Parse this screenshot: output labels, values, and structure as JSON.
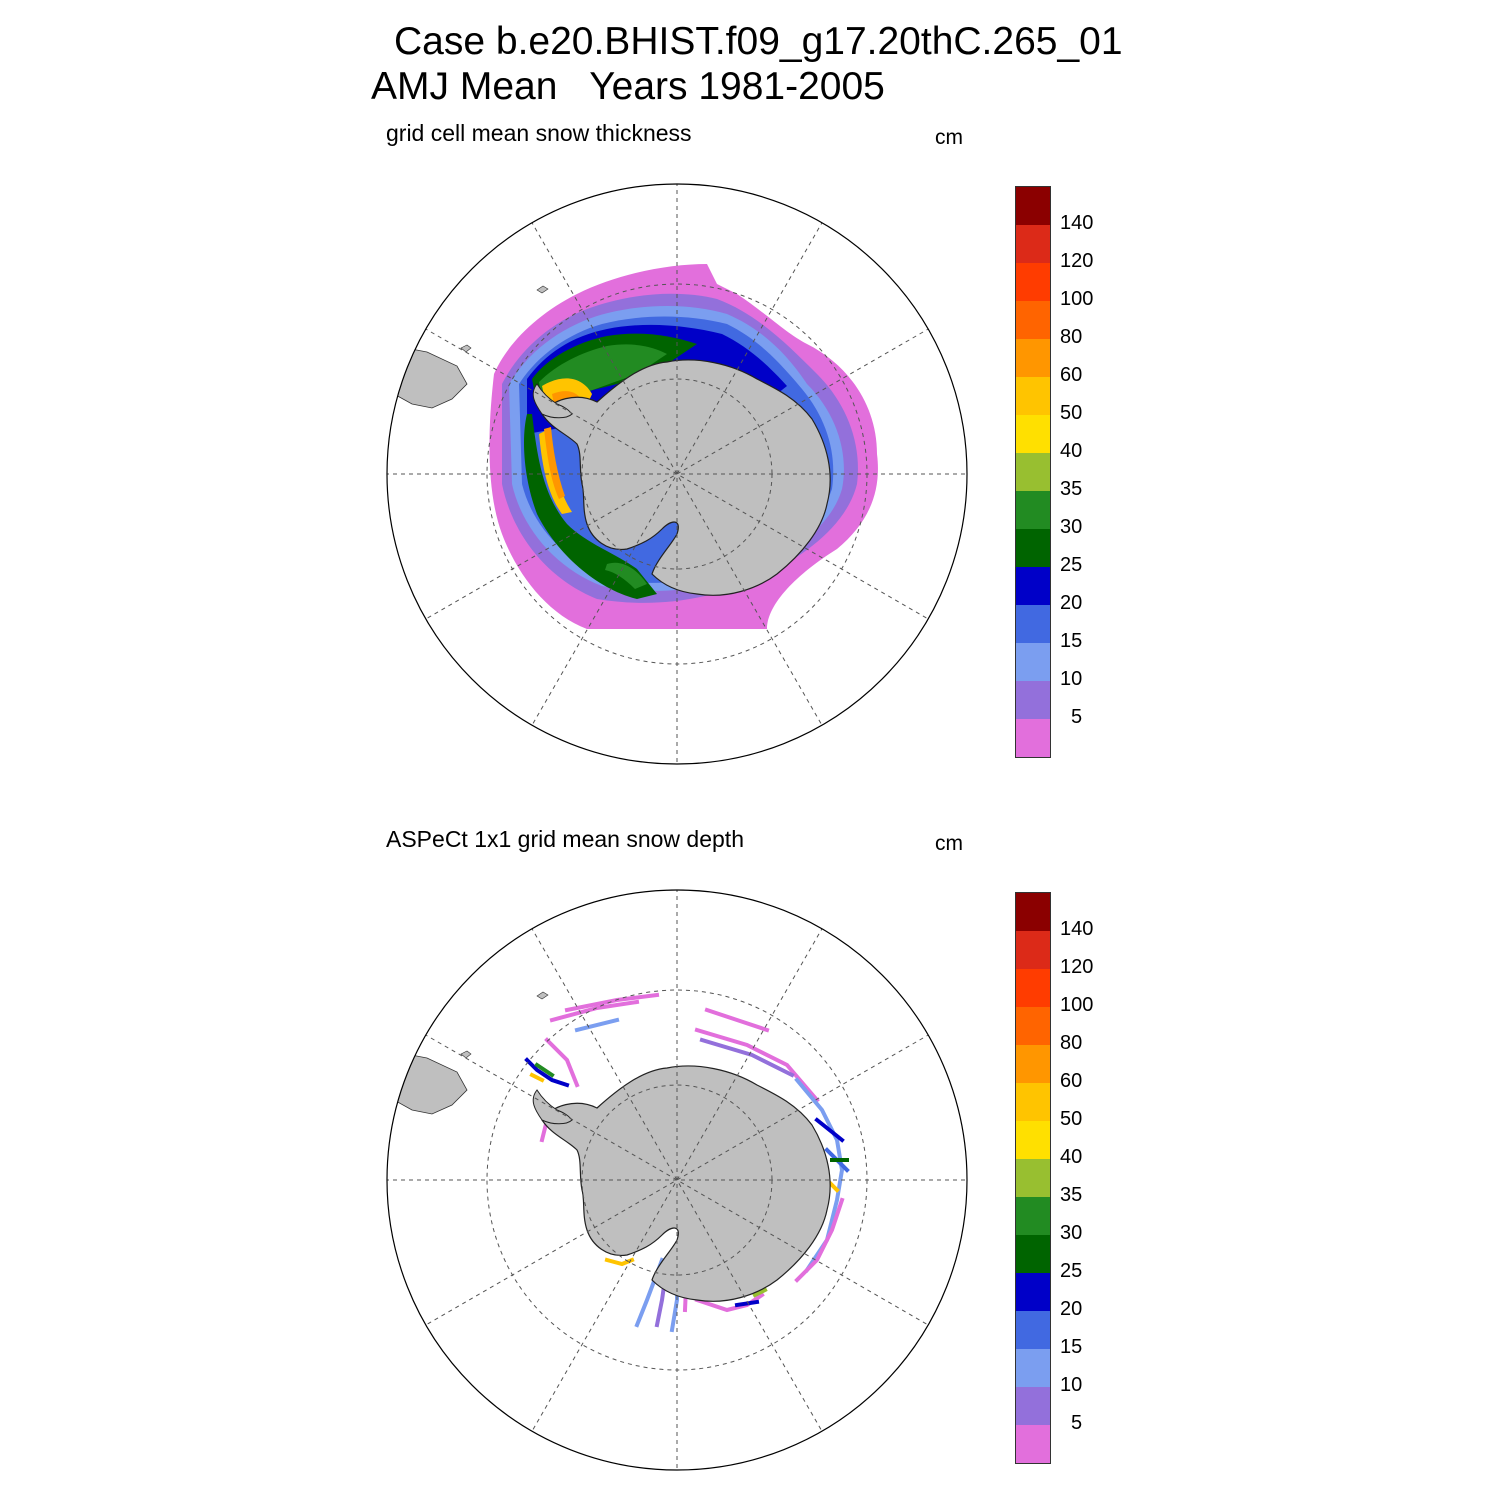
{
  "header": {
    "case_line": "Case b.e20.BHIST.f09_g17.20thC.265_01",
    "period_line": "AMJ Mean   Years 1981-2005"
  },
  "panels": [
    {
      "title": "grid cell mean snow thickness",
      "unit": "cm"
    },
    {
      "title": "ASPeCt 1x1 grid mean snow depth",
      "unit": "cm"
    }
  ],
  "colorbar": {
    "labels": [
      "140",
      "120",
      "100",
      "80",
      "60",
      "50",
      "40",
      "35",
      "30",
      "25",
      "20",
      "15",
      "10",
      "5"
    ],
    "colors": [
      "#8b0000",
      "#dc2a18",
      "#ff3c00",
      "#ff6400",
      "#ff9600",
      "#ffc400",
      "#ffe000",
      "#98bf30",
      "#228b22",
      "#006400",
      "#0000c8",
      "#4169e1",
      "#7b9ef0",
      "#9370db",
      "#e26fdc"
    ]
  },
  "map_colors": {
    "land": "#bfbfbf",
    "ocean": "#ffffff"
  }
}
